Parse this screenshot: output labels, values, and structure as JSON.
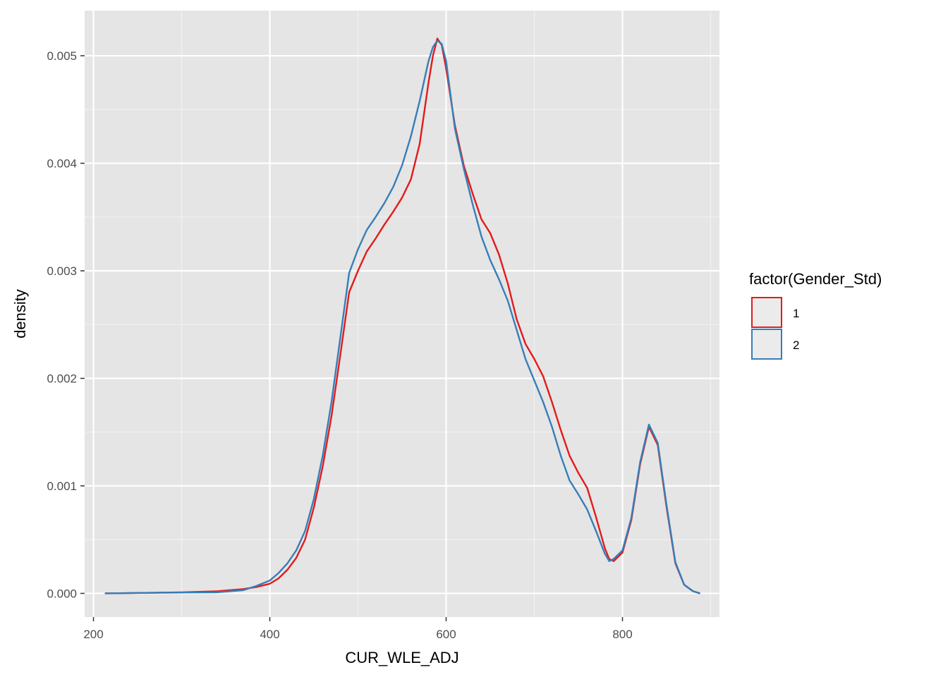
{
  "chart_data": {
    "type": "line",
    "xlabel": "CUR_WLE_ADJ",
    "ylabel": "density",
    "xlim": [
      190,
      910
    ],
    "ylim": [
      -0.00022,
      0.00542
    ],
    "x_ticks": [
      200,
      400,
      600,
      800
    ],
    "x_tick_labels": [
      "200",
      "400",
      "600",
      "800"
    ],
    "y_ticks": [
      0,
      0.001,
      0.002,
      0.003,
      0.004,
      0.005
    ],
    "y_tick_labels": [
      "0.000",
      "0.001",
      "0.002",
      "0.003",
      "0.004",
      "0.005"
    ],
    "grid": true,
    "legend": {
      "title": "factor(Gender_Std)",
      "position": "right"
    },
    "series": [
      {
        "name": "1",
        "color": "#E41A1C",
        "points": [
          [
            213,
            0.0
          ],
          [
            260,
            5e-06
          ],
          [
            300,
            1e-05
          ],
          [
            340,
            2e-05
          ],
          [
            370,
            4e-05
          ],
          [
            385,
            6e-05
          ],
          [
            400,
            9e-05
          ],
          [
            410,
            0.00014
          ],
          [
            420,
            0.00022
          ],
          [
            430,
            0.00033
          ],
          [
            440,
            0.0005
          ],
          [
            450,
            0.0008
          ],
          [
            460,
            0.00118
          ],
          [
            470,
            0.00165
          ],
          [
            480,
            0.00222
          ],
          [
            490,
            0.0028
          ],
          [
            500,
            0.003
          ],
          [
            510,
            0.00318
          ],
          [
            520,
            0.0033
          ],
          [
            530,
            0.00343
          ],
          [
            540,
            0.00355
          ],
          [
            550,
            0.00368
          ],
          [
            560,
            0.00385
          ],
          [
            570,
            0.00418
          ],
          [
            580,
            0.00475
          ],
          [
            585,
            0.005
          ],
          [
            590,
            0.00516
          ],
          [
            595,
            0.0051
          ],
          [
            600,
            0.00488
          ],
          [
            610,
            0.00435
          ],
          [
            620,
            0.00398
          ],
          [
            630,
            0.00372
          ],
          [
            640,
            0.00348
          ],
          [
            650,
            0.00335
          ],
          [
            660,
            0.00315
          ],
          [
            670,
            0.00288
          ],
          [
            680,
            0.00255
          ],
          [
            690,
            0.00232
          ],
          [
            700,
            0.00218
          ],
          [
            710,
            0.00202
          ],
          [
            720,
            0.00178
          ],
          [
            730,
            0.00152
          ],
          [
            740,
            0.00128
          ],
          [
            750,
            0.00112
          ],
          [
            760,
            0.00098
          ],
          [
            770,
            0.00071
          ],
          [
            780,
            0.00042
          ],
          [
            785,
            0.00032
          ],
          [
            790,
            0.0003
          ],
          [
            800,
            0.00038
          ],
          [
            810,
            0.00068
          ],
          [
            820,
            0.0012
          ],
          [
            830,
            0.00155
          ],
          [
            840,
            0.00138
          ],
          [
            850,
            0.0008
          ],
          [
            860,
            0.00028
          ],
          [
            870,
            8e-05
          ],
          [
            880,
            2e-05
          ],
          [
            888,
            0.0
          ]
        ]
      },
      {
        "name": "2",
        "color": "#377EB8",
        "points": [
          [
            213,
            0.0
          ],
          [
            260,
            5e-06
          ],
          [
            300,
            8e-06
          ],
          [
            340,
            1e-05
          ],
          [
            370,
            3e-05
          ],
          [
            385,
            7e-05
          ],
          [
            400,
            0.00012
          ],
          [
            410,
            0.00019
          ],
          [
            420,
            0.00028
          ],
          [
            430,
            0.0004
          ],
          [
            440,
            0.00058
          ],
          [
            450,
            0.00088
          ],
          [
            460,
            0.00128
          ],
          [
            470,
            0.00178
          ],
          [
            480,
            0.00238
          ],
          [
            490,
            0.00298
          ],
          [
            500,
            0.0032
          ],
          [
            510,
            0.00338
          ],
          [
            520,
            0.0035
          ],
          [
            530,
            0.00363
          ],
          [
            540,
            0.00378
          ],
          [
            550,
            0.00398
          ],
          [
            560,
            0.00425
          ],
          [
            570,
            0.00458
          ],
          [
            580,
            0.00495
          ],
          [
            585,
            0.00508
          ],
          [
            590,
            0.00514
          ],
          [
            595,
            0.00511
          ],
          [
            600,
            0.00495
          ],
          [
            610,
            0.00432
          ],
          [
            620,
            0.00395
          ],
          [
            630,
            0.00362
          ],
          [
            640,
            0.00332
          ],
          [
            650,
            0.0031
          ],
          [
            660,
            0.00292
          ],
          [
            670,
            0.00272
          ],
          [
            680,
            0.00245
          ],
          [
            690,
            0.00218
          ],
          [
            700,
            0.00198
          ],
          [
            710,
            0.00178
          ],
          [
            720,
            0.00155
          ],
          [
            730,
            0.00128
          ],
          [
            740,
            0.00105
          ],
          [
            750,
            0.00092
          ],
          [
            760,
            0.00078
          ],
          [
            770,
            0.00058
          ],
          [
            780,
            0.00037
          ],
          [
            785,
            0.0003
          ],
          [
            790,
            0.00032
          ],
          [
            800,
            0.0004
          ],
          [
            810,
            0.0007
          ],
          [
            820,
            0.00122
          ],
          [
            830,
            0.00157
          ],
          [
            840,
            0.0014
          ],
          [
            850,
            0.00082
          ],
          [
            860,
            0.00029
          ],
          [
            870,
            8e-05
          ],
          [
            880,
            2e-05
          ],
          [
            888,
            0.0
          ]
        ]
      }
    ]
  },
  "colors": {
    "panel_background": "#E5E5E5",
    "grid_major": "#FFFFFF",
    "grid_minor": "#F2F2F2",
    "legend_key_fill": "#EBEBEB"
  }
}
